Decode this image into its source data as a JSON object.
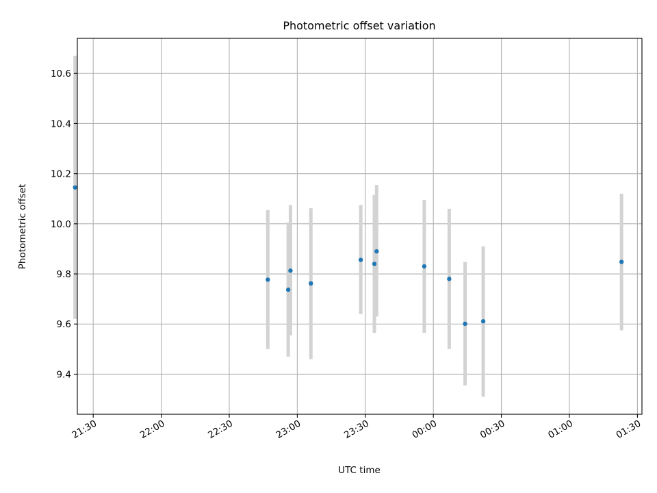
{
  "chart_data": {
    "type": "scatter",
    "title": "Photometric offset variation",
    "xlabel": "UTC time",
    "ylabel": "Photometric offset",
    "x_axis": {
      "kind": "time",
      "reference_date": "",
      "range": [
        "21:23",
        "01:32"
      ],
      "ticks": [
        "21:30",
        "22:00",
        "22:30",
        "23:00",
        "23:30",
        "00:00",
        "00:30",
        "01:00",
        "01:30"
      ]
    },
    "y_axis": {
      "range": [
        9.24,
        10.74
      ],
      "ticks": [
        "9.4",
        "9.6",
        "9.8",
        "10.0",
        "10.2",
        "10.4",
        "10.6"
      ]
    },
    "grid": true,
    "colors": {
      "points": "#1f77b4",
      "error_bars": "#d3d3d3",
      "grid": "#b0b0b0"
    },
    "points": [
      {
        "time": "21:22",
        "y": 10.145,
        "lo": 9.62,
        "hi": 10.67
      },
      {
        "time": "22:47",
        "y": 9.777,
        "lo": 9.5,
        "hi": 10.055
      },
      {
        "time": "22:56",
        "y": 9.737,
        "lo": 9.47,
        "hi": 10.005
      },
      {
        "time": "22:57",
        "y": 9.813,
        "lo": 9.555,
        "hi": 10.075
      },
      {
        "time": "23:06",
        "y": 9.762,
        "lo": 9.46,
        "hi": 10.062
      },
      {
        "time": "23:28",
        "y": 9.856,
        "lo": 9.64,
        "hi": 10.075
      },
      {
        "time": "23:34",
        "y": 9.84,
        "lo": 9.565,
        "hi": 10.115
      },
      {
        "time": "23:35",
        "y": 9.89,
        "lo": 9.63,
        "hi": 10.155
      },
      {
        "time": "23:56",
        "y": 9.83,
        "lo": 9.565,
        "hi": 10.095
      },
      {
        "time": "00:07",
        "y": 9.78,
        "lo": 9.5,
        "hi": 10.06
      },
      {
        "time": "00:14",
        "y": 9.601,
        "lo": 9.355,
        "hi": 9.848
      },
      {
        "time": "00:22",
        "y": 9.611,
        "lo": 9.31,
        "hi": 9.91
      },
      {
        "time": "01:23",
        "y": 9.848,
        "lo": 9.575,
        "hi": 10.12
      }
    ]
  }
}
